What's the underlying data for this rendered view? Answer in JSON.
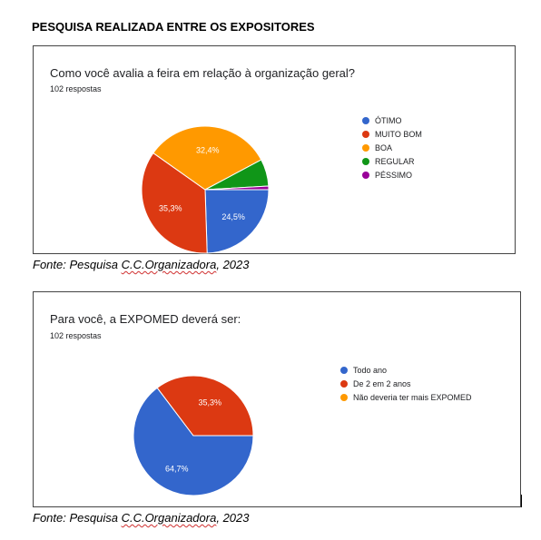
{
  "heading": "PESQUISA REALIZADA ENTRE OS EXPOSITORES",
  "source_prefix": "Fonte: Pesquisa ",
  "source_org": "C.C.Organizadora",
  "source_suffix": ", 2023",
  "chart_data": [
    {
      "type": "pie",
      "title": "Como você avalia a feira em relação à organização geral?",
      "subtitle": "102 respostas",
      "legend_position": "right",
      "slices": [
        {
          "name": "ÓTIMO",
          "value": 24.5,
          "label": "24,5%",
          "color": "#3366cc"
        },
        {
          "name": "MUITO BOM",
          "value": 35.3,
          "label": "35,3%",
          "color": "#dc3912"
        },
        {
          "name": "BOA",
          "value": 32.4,
          "label": "32,4%",
          "color": "#ff9900"
        },
        {
          "name": "REGULAR",
          "value": 6.9,
          "label": "",
          "color": "#109618"
        },
        {
          "name": "PÉSSIMO",
          "value": 0.9,
          "label": "",
          "color": "#990099"
        }
      ]
    },
    {
      "type": "pie",
      "title": "Para você, a EXPOMED deverá ser:",
      "subtitle": "102 respostas",
      "legend_position": "right",
      "slices": [
        {
          "name": "Todo ano",
          "value": 64.7,
          "label": "64,7%",
          "color": "#3366cc"
        },
        {
          "name": "De 2 em 2 anos",
          "value": 35.3,
          "label": "35,3%",
          "color": "#dc3912"
        },
        {
          "name": "Não deveria ter mais EXPOMED",
          "value": 0,
          "label": "",
          "color": "#ff9900"
        }
      ]
    }
  ]
}
